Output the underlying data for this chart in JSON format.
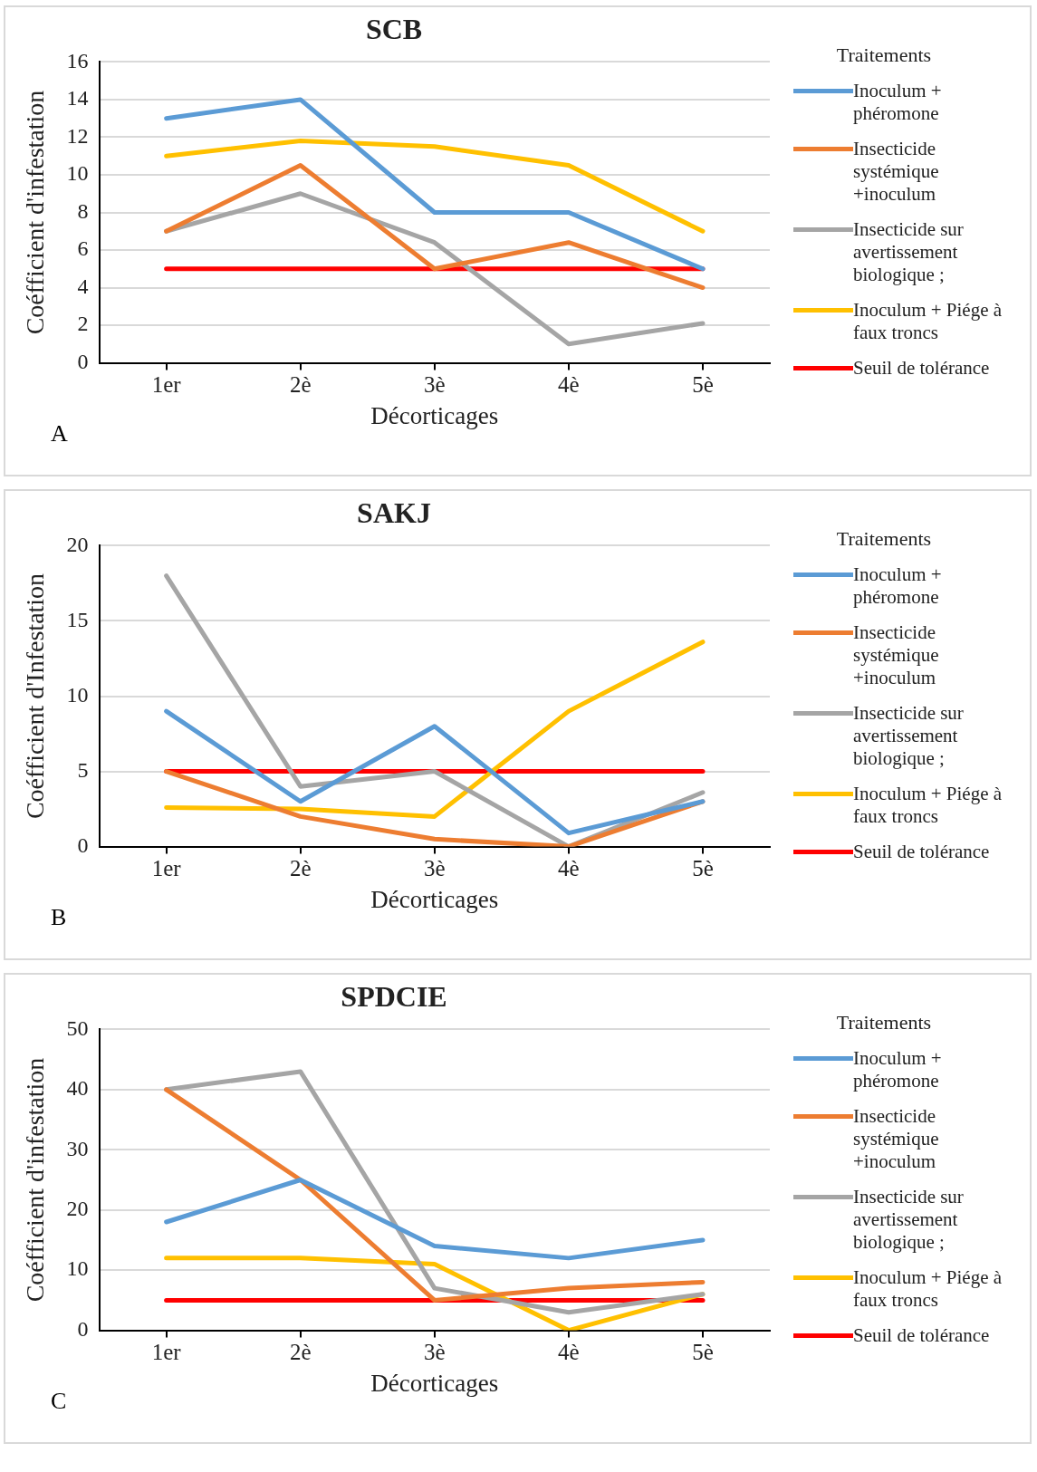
{
  "chart_data": [
    {
      "type": "line",
      "title": "SCB",
      "xlabel": "Décorticages",
      "ylabel": "Coéfficient d'infestation",
      "legend_title": "Traitements",
      "categories": [
        "1er",
        "2è",
        "3è",
        "4è",
        "5è"
      ],
      "ylim": [
        0,
        16
      ],
      "yticks": [
        0,
        2,
        4,
        6,
        8,
        10,
        12,
        14,
        16
      ],
      "grid": "y",
      "legend": "right",
      "marker": "none",
      "line_style": "solid",
      "annotations": [
        "A"
      ],
      "series": [
        {
          "name": "Inoculum + phéromone",
          "color": "#5b9bd5",
          "values": [
            13,
            14,
            8,
            8,
            5
          ]
        },
        {
          "name": "Insecticide systémique +inoculum",
          "color": "#ed7d31",
          "values": [
            7,
            10.5,
            5,
            6.4,
            4
          ]
        },
        {
          "name": "Insecticide sur avertissement biologique ;",
          "color": "#a5a5a5",
          "values": [
            7,
            9,
            6.4,
            1,
            2.1
          ]
        },
        {
          "name": "Inoculum + Piége à faux troncs",
          "color": "#ffc000",
          "values": [
            11,
            11.8,
            11.5,
            10.5,
            7
          ]
        },
        {
          "name": "Seuil de tolérance",
          "color": "#ff0000",
          "values": [
            5,
            5,
            5,
            5,
            5
          ]
        }
      ]
    },
    {
      "type": "line",
      "title": "SAKJ",
      "xlabel": "Décorticages",
      "ylabel": "Coéfficient d'Infestation",
      "legend_title": "Traitements",
      "categories": [
        "1er",
        "2è",
        "3è",
        "4è",
        "5è"
      ],
      "ylim": [
        0,
        20
      ],
      "yticks": [
        0,
        5,
        10,
        15,
        20
      ],
      "grid": "y",
      "legend": "right",
      "marker": "none",
      "line_style": "solid",
      "annotations": [
        "B"
      ],
      "series": [
        {
          "name": "Inoculum + phéromone",
          "color": "#5b9bd5",
          "values": [
            9,
            3,
            8,
            0.9,
            3
          ]
        },
        {
          "name": "Insecticide systémique +inoculum",
          "color": "#ed7d31",
          "values": [
            5,
            2,
            0.5,
            0,
            3
          ]
        },
        {
          "name": "Insecticide sur avertissement biologique ;",
          "color": "#a5a5a5",
          "values": [
            18,
            4,
            5,
            0,
            3.6
          ]
        },
        {
          "name": "Inoculum + Piége à faux troncs",
          "color": "#ffc000",
          "values": [
            2.6,
            2.5,
            2,
            9,
            13.6
          ]
        },
        {
          "name": "Seuil de tolérance",
          "color": "#ff0000",
          "values": [
            5,
            5,
            5,
            5,
            5
          ]
        }
      ]
    },
    {
      "type": "line",
      "title": "SPDCIE",
      "xlabel": "Décorticages",
      "ylabel": "Coéfficient d'infestation",
      "legend_title": "Traitements",
      "categories": [
        "1er",
        "2è",
        "3è",
        "4è",
        "5è"
      ],
      "ylim": [
        0,
        50
      ],
      "yticks": [
        0,
        10,
        20,
        30,
        40,
        50
      ],
      "grid": "y",
      "legend": "right",
      "marker": "none",
      "line_style": "solid",
      "annotations": [
        "C"
      ],
      "series": [
        {
          "name": "Inoculum + phéromone",
          "color": "#5b9bd5",
          "values": [
            18,
            25,
            14,
            12,
            15
          ]
        },
        {
          "name": "Insecticide systémique +inoculum",
          "color": "#ed7d31",
          "values": [
            40,
            25,
            5,
            7,
            8
          ]
        },
        {
          "name": "Insecticide sur avertissement biologique ;",
          "color": "#a5a5a5",
          "values": [
            40,
            43,
            7,
            3,
            6
          ]
        },
        {
          "name": "Inoculum + Piége à faux troncs",
          "color": "#ffc000",
          "values": [
            12,
            12,
            11,
            0,
            6
          ]
        },
        {
          "name": "Seuil de tolérance",
          "color": "#ff0000",
          "values": [
            5,
            5,
            5,
            5,
            5
          ]
        }
      ]
    }
  ]
}
